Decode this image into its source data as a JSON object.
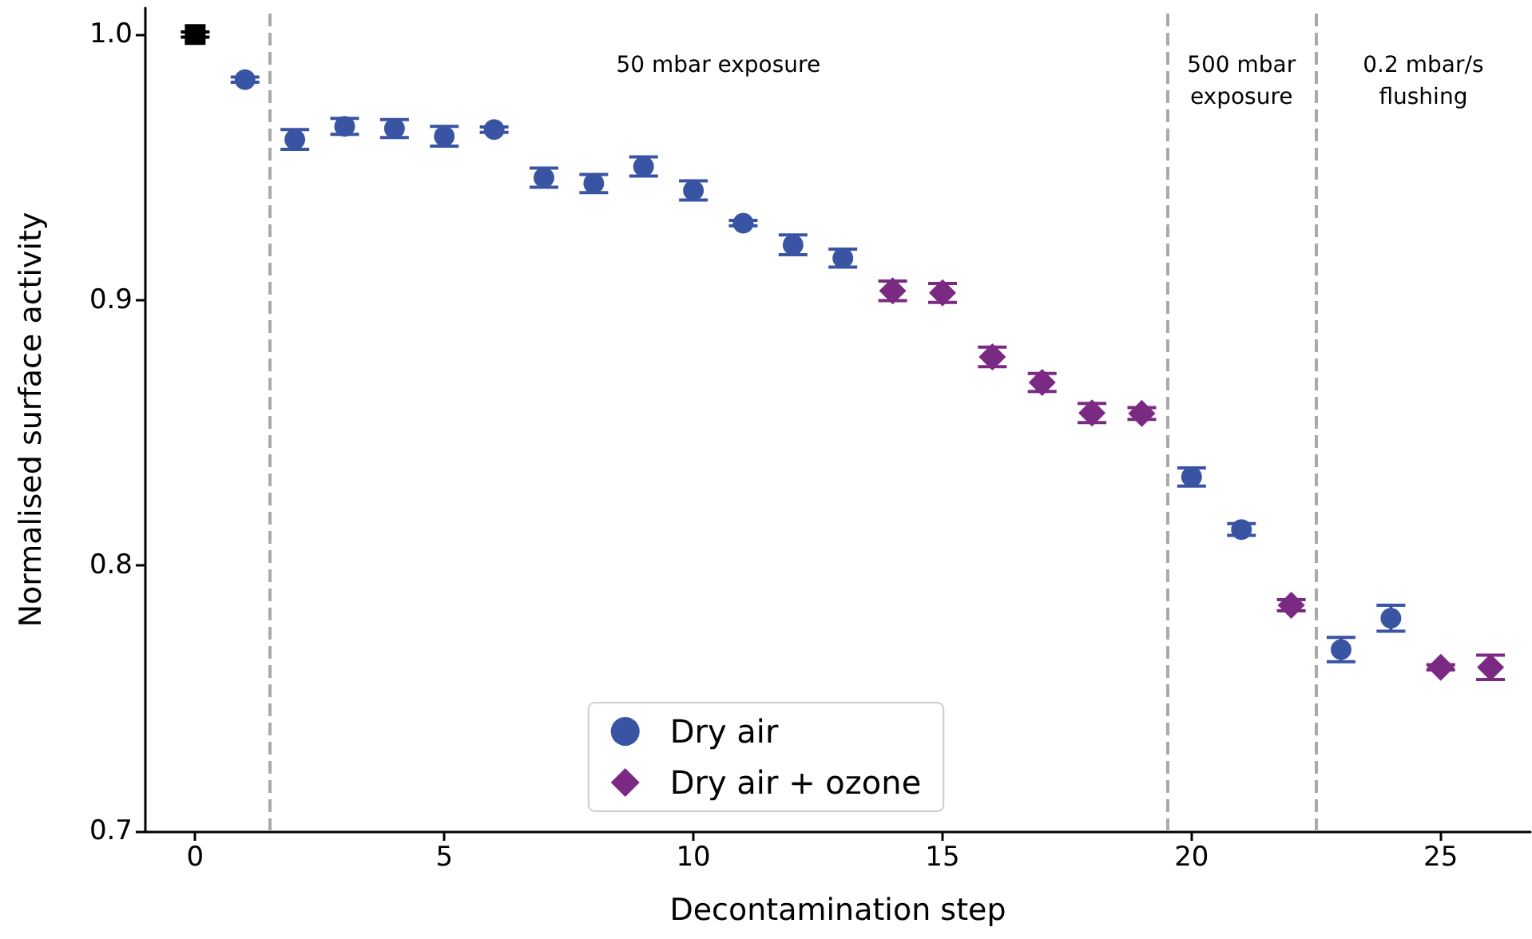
{
  "chart_data": {
    "type": "scatter",
    "xlabel": "Decontamination step",
    "ylabel": "Normalised surface activity",
    "xlim": [
      -1,
      26.8
    ],
    "xticks": [
      0,
      5,
      10,
      15,
      20,
      25
    ],
    "ylim": [
      0.7,
      1.01
    ],
    "yticks": [
      0.7,
      0.8,
      0.9,
      {
        "value": 1,
        "label": "1.0"
      }
    ],
    "grid": false,
    "legend": "bottom",
    "series": [
      {
        "color": "#000000",
        "marker": "square",
        "x": [
          0
        ],
        "values": [
          1.0
        ],
        "errors": [
          0.001
        ]
      },
      {
        "name": "Dry air",
        "color": "#3a54a4",
        "marker": "circle",
        "x": [
          1,
          2,
          3,
          4,
          5,
          6,
          7,
          8,
          9,
          10,
          11,
          12,
          13,
          20,
          21,
          23,
          24
        ],
        "values": [
          0.983,
          0.9605,
          0.9654,
          0.9646,
          0.9617,
          0.9642,
          0.9461,
          0.9439,
          0.9503,
          0.9413,
          0.929,
          0.9208,
          0.9158,
          0.8334,
          0.8136,
          0.7684,
          0.7802
        ],
        "errors": [
          0.001,
          0.0037,
          0.003,
          0.0034,
          0.0037,
          0.001,
          0.0036,
          0.0034,
          0.0036,
          0.0036,
          0.001,
          0.0037,
          0.0034,
          0.0034,
          0.0022,
          0.0046,
          0.0049
        ]
      },
      {
        "name": "Dry air + ozone",
        "color": "#7b2a83",
        "marker": "diamond",
        "x": [
          14,
          15,
          16,
          17,
          18,
          19,
          22,
          25,
          26
        ],
        "values": [
          0.9035,
          0.9027,
          0.8786,
          0.869,
          0.8575,
          0.8573,
          0.7851,
          0.7617,
          0.7617
        ],
        "errors": [
          0.0037,
          0.0036,
          0.0037,
          0.0034,
          0.0036,
          0.0022,
          0.0021,
          0.001,
          0.0046
        ]
      }
    ],
    "ref_lines": [
      {
        "axis": "x",
        "value": 1.5,
        "color": "#aaaaaa",
        "line_style": "dashed"
      },
      {
        "axis": "x",
        "value": 19.5,
        "color": "#aaaaaa",
        "line_style": "dashed"
      },
      {
        "axis": "x",
        "value": 22.5,
        "color": "#aaaaaa",
        "line_style": "dashed"
      }
    ],
    "annotations": [
      "50 mbar exposure",
      "500 mbar\nexposure",
      "0.2 mbar/s\nflushing"
    ]
  }
}
